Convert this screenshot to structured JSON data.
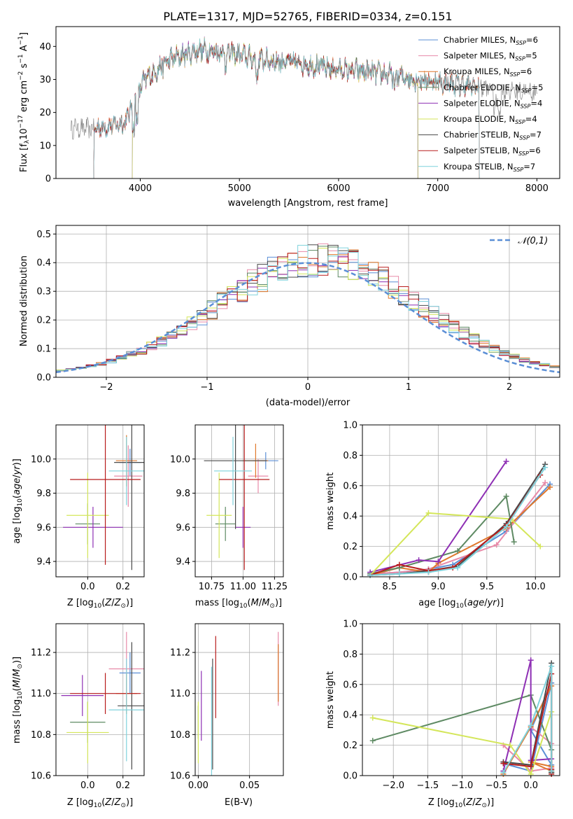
{
  "figure": {
    "title": "PLATE=1317, MJD=52765, FIBERID=0334, z=0.151"
  },
  "colors": [
    "#5b8fd6",
    "#e88aa8",
    "#e0782c",
    "#5e8a63",
    "#8e2fb4",
    "#d4e65a",
    "#4a4a4a",
    "#b81c1c",
    "#7fd2dc"
  ],
  "chart_data": [
    {
      "type": "line",
      "panel": "spectrum",
      "xlabel": "wavelength [Angstrom, rest frame]",
      "ylabel": "Flux [f_λ 10^-17 erg cm^-2 s^-1 A^-1]",
      "xlim": [
        3150,
        8230
      ],
      "ylim": [
        0,
        46
      ],
      "xticks": [
        4000,
        5000,
        6000,
        7000,
        8000
      ],
      "yticks": [
        0,
        10,
        20,
        30,
        40
      ],
      "grid": false,
      "legend_position": "top-right",
      "legend": [
        {
          "name": "Chabrier MILES",
          "nssp": "6"
        },
        {
          "name": "Salpeter MILES",
          "nssp": "5"
        },
        {
          "name": "Kroupa MILES",
          "nssp": "6"
        },
        {
          "name": "Chabrier ELODIE",
          "nssp": "5"
        },
        {
          "name": "Salpeter ELODIE",
          "nssp": "4"
        },
        {
          "name": "Kroupa ELODIE",
          "nssp": "4"
        },
        {
          "name": "Chabrier STELIB",
          "nssp": "7"
        },
        {
          "name": "Salpeter STELIB",
          "nssp": "6"
        },
        {
          "name": "Kroupa STELIB",
          "nssp": "7"
        }
      ],
      "continuum": {
        "x": [
          3300,
          3500,
          3700,
          3850,
          3950,
          4050,
          4300,
          4600,
          4900,
          5200,
          5600,
          6000,
          6400,
          6800,
          7200,
          7600,
          8000
        ],
        "y": [
          15.5,
          15,
          16,
          17,
          25,
          30,
          36,
          39,
          38,
          36,
          35,
          33,
          32,
          30,
          28.5,
          27,
          26
        ]
      },
      "model_ranges": [
        [
          3530,
          6800
        ],
        [
          3530,
          6800
        ],
        [
          3530,
          7420
        ],
        [
          3920,
          6800
        ],
        [
          3920,
          6800
        ],
        [
          3920,
          6800
        ],
        [
          3530,
          7420
        ],
        [
          3530,
          7420
        ],
        [
          3530,
          7420
        ]
      ]
    },
    {
      "type": "area",
      "panel": "residual-histogram",
      "xlabel": "(data-model)/error",
      "ylabel": "Normed distribution",
      "xlim": [
        -2.5,
        2.5
      ],
      "ylim": [
        0,
        0.53
      ],
      "xticks": [
        -2,
        -1,
        0,
        1,
        2
      ],
      "yticks": [
        0.0,
        0.1,
        0.2,
        0.3,
        0.4,
        0.5
      ],
      "grid": true,
      "legend_position": "top-right",
      "legend": [
        {
          "name": "𝒩(0,1)"
        }
      ],
      "bin_width": 0.1
    },
    {
      "type": "scatter",
      "panel": "age-vs-Z",
      "xlabel": "Z [log10(Z/Z☉)]",
      "ylabel": "age  [log10(age/yr)]",
      "xlim": [
        -0.18,
        0.32
      ],
      "ylim": [
        9.31,
        10.2
      ],
      "xticks": [
        0.0,
        0.2
      ],
      "yticks": [
        9.4,
        9.6,
        9.8,
        10.0
      ],
      "grid": true,
      "points": [
        {
          "x": 0.24,
          "y": 9.98,
          "xerr": 0.06,
          "yerr": 0.08
        },
        {
          "x": 0.23,
          "y": 9.9,
          "xerr": 0.08,
          "yerr": 0.18
        },
        {
          "x": 0.22,
          "y": 9.99,
          "xerr": 0.06,
          "yerr": 0.15
        },
        {
          "x": 0.0,
          "y": 9.62,
          "xerr": 0.07,
          "yerr": 0.12
        },
        {
          "x": 0.03,
          "y": 9.6,
          "xerr": 0.17,
          "yerr": 0.12
        },
        {
          "x": 0.0,
          "y": 9.67,
          "xerr": 0.12,
          "yerr": 0.25
        },
        {
          "x": 0.25,
          "y": 9.98,
          "xerr": 0.1,
          "yerr": 0.63
        },
        {
          "x": 0.1,
          "y": 9.88,
          "xerr": 0.2,
          "yerr": 0.5
        },
        {
          "x": 0.22,
          "y": 9.93,
          "xerr": 0.1,
          "yerr": 0.2
        }
      ]
    },
    {
      "type": "scatter",
      "panel": "age-vs-mass",
      "xlabel": "mass [log10(M/M☉)]",
      "ylabel": "",
      "xlim": [
        10.62,
        11.32
      ],
      "ylim": [
        9.31,
        10.2
      ],
      "xticks": [
        10.75,
        11.0,
        11.25
      ],
      "yticks": [
        9.4,
        9.6,
        9.8,
        10.0
      ],
      "grid": true,
      "points": [
        {
          "x": 11.18,
          "y": 9.99,
          "xerr": 0.1,
          "yerr": 0.05
        },
        {
          "x": 11.12,
          "y": 9.9,
          "xerr": 0.08,
          "yerr": 0.1
        },
        {
          "x": 11.1,
          "y": 9.99,
          "xerr": 0.1,
          "yerr": 0.1
        },
        {
          "x": 10.86,
          "y": 9.62,
          "xerr": 0.08,
          "yerr": 0.1
        },
        {
          "x": 11.0,
          "y": 9.6,
          "xerr": 0.06,
          "yerr": 0.12
        },
        {
          "x": 10.81,
          "y": 9.67,
          "xerr": 0.1,
          "yerr": 0.25
        },
        {
          "x": 10.94,
          "y": 9.99,
          "xerr": 0.25,
          "yerr": 0.4
        },
        {
          "x": 11.01,
          "y": 9.88,
          "xerr": 0.2,
          "yerr": 0.53
        },
        {
          "x": 10.92,
          "y": 9.93,
          "xerr": 0.15,
          "yerr": 0.2
        }
      ]
    },
    {
      "type": "line",
      "panel": "weight-vs-age",
      "xlabel": "age  [log10(age/yr)]",
      "ylabel": "mass weight",
      "xlim": [
        8.22,
        10.25
      ],
      "ylim": [
        0,
        1.0
      ],
      "xticks": [
        8.5,
        9.0,
        9.5,
        10.0
      ],
      "yticks": [
        0.0,
        0.2,
        0.4,
        0.6,
        0.8,
        1.0
      ],
      "grid": true,
      "series": [
        {
          "x": [
            8.3,
            8.6,
            8.9,
            9.15,
            9.7,
            10.15
          ],
          "y": [
            0.02,
            0.03,
            0.05,
            0.08,
            0.3,
            0.61
          ]
        },
        {
          "x": [
            8.3,
            8.6,
            8.9,
            9.6,
            10.1
          ],
          "y": [
            0.02,
            0.03,
            0.05,
            0.21,
            0.62
          ]
        },
        {
          "x": [
            8.3,
            8.6,
            8.9,
            9.0,
            9.7,
            10.15
          ],
          "y": [
            0.01,
            0.06,
            0.03,
            0.09,
            0.32,
            0.59
          ]
        },
        {
          "x": [
            8.3,
            8.6,
            9.2,
            9.7,
            9.78
          ],
          "y": [
            0.02,
            0.06,
            0.17,
            0.53,
            0.23
          ]
        },
        {
          "x": [
            8.3,
            8.8,
            9.0,
            9.7
          ],
          "y": [
            0.03,
            0.11,
            0.1,
            0.76
          ]
        },
        {
          "x": [
            8.3,
            8.9,
            9.75,
            10.05
          ],
          "y": [
            0.01,
            0.42,
            0.38,
            0.2
          ]
        },
        {
          "x": [
            8.3,
            8.6,
            8.9,
            9.2,
            9.7,
            10.1
          ],
          "y": [
            0.01,
            0.02,
            0.04,
            0.07,
            0.35,
            0.74
          ]
        },
        {
          "x": [
            8.3,
            8.6,
            8.9,
            9.15,
            9.7,
            10.05
          ],
          "y": [
            0.01,
            0.08,
            0.04,
            0.06,
            0.34,
            0.67
          ]
        },
        {
          "x": [
            8.3,
            8.6,
            8.9,
            9.2,
            9.7,
            10.1
          ],
          "y": [
            0.01,
            0.02,
            0.03,
            0.06,
            0.33,
            0.72
          ]
        }
      ]
    },
    {
      "type": "scatter",
      "panel": "mass-vs-Z",
      "xlabel": "Z [log10(Z/Z☉)]",
      "ylabel": "mass [log10(M/M☉)]",
      "xlim": [
        -0.18,
        0.32
      ],
      "ylim": [
        10.6,
        11.34
      ],
      "xticks": [
        0.0,
        0.2
      ],
      "yticks": [
        10.6,
        10.8,
        11.0,
        11.2
      ],
      "grid": true,
      "points": [
        {
          "x": 0.24,
          "y": 11.1,
          "xerr": 0.06,
          "yerr": 0.1
        },
        {
          "x": 0.22,
          "y": 11.12,
          "xerr": 0.1,
          "yerr": 0.18
        },
        {
          "x": 0.22,
          "y": 11.0,
          "xerr": 0.06,
          "yerr": 0.1
        },
        {
          "x": 0.0,
          "y": 10.86,
          "xerr": 0.1,
          "yerr": 0.1
        },
        {
          "x": -0.03,
          "y": 10.99,
          "xerr": 0.12,
          "yerr": 0.1
        },
        {
          "x": 0.0,
          "y": 10.81,
          "xerr": 0.12,
          "yerr": 0.15
        },
        {
          "x": 0.25,
          "y": 10.94,
          "xerr": 0.08,
          "yerr": 0.31
        },
        {
          "x": 0.1,
          "y": 11.0,
          "xerr": 0.2,
          "yerr": 0.1
        },
        {
          "x": 0.22,
          "y": 10.92,
          "xerr": 0.1,
          "yerr": 0.25
        }
      ]
    },
    {
      "type": "scatter",
      "panel": "mass-vs-ebv",
      "xlabel": "E(B-V)",
      "ylabel": "",
      "xlim": [
        -0.003,
        0.083
      ],
      "ylim": [
        10.6,
        11.34
      ],
      "xticks": [
        0.0,
        0.05
      ],
      "yticks": [
        10.6,
        10.8,
        11.0,
        11.2
      ],
      "grid": true,
      "points": [
        {
          "x": 0.078,
          "y": 11.1,
          "yerr": 0.14
        },
        {
          "x": 0.078,
          "y": 11.12,
          "yerr": 0.18
        },
        {
          "x": 0.078,
          "y": 11.1,
          "yerr": 0.14
        },
        {
          "x": 0.0,
          "y": 10.86,
          "yerr": 0.08
        },
        {
          "x": 0.003,
          "y": 10.94,
          "yerr": 0.17
        },
        {
          "x": 0.0,
          "y": 10.81,
          "yerr": 0.15
        },
        {
          "x": 0.014,
          "y": 10.9,
          "yerr": 0.27
        },
        {
          "x": 0.017,
          "y": 11.08,
          "yerr": 0.2
        },
        {
          "x": 0.013,
          "y": 10.86,
          "yerr": 0.27
        }
      ]
    },
    {
      "type": "line",
      "panel": "weight-vs-Z",
      "xlabel": "Z [log10(Z/Z☉)]",
      "ylabel": "mass weight",
      "xlim": [
        -2.45,
        0.42
      ],
      "ylim": [
        0,
        1.0
      ],
      "xticks": [
        -2.0,
        -1.5,
        -1.0,
        -0.5,
        0.0
      ],
      "yticks": [
        0.0,
        0.2,
        0.4,
        0.6,
        0.8,
        1.0
      ],
      "grid": true,
      "series": [
        {
          "x": [
            -0.4,
            0.0,
            0.3,
            0.0,
            0.3
          ],
          "y": [
            0.08,
            0.03,
            0.61,
            0.3,
            0.07
          ]
        },
        {
          "x": [
            -0.4,
            0.0,
            0.3,
            0.3,
            0.0
          ],
          "y": [
            0.2,
            0.03,
            0.05,
            0.21,
            0.32
          ]
        },
        {
          "x": [
            -0.4,
            0.0,
            0.3,
            0.3,
            0.0,
            0.3
          ],
          "y": [
            0.01,
            0.32,
            0.59,
            0.06,
            0.09,
            0.03
          ]
        },
        {
          "x": [
            -2.3,
            0.0,
            0.3,
            0.3
          ],
          "y": [
            0.23,
            0.53,
            0.17,
            0.02
          ]
        },
        {
          "x": [
            -0.4,
            0.0,
            0.0,
            0.3
          ],
          "y": [
            0.03,
            0.76,
            0.1,
            0.11
          ]
        },
        {
          "x": [
            -2.3,
            -0.3,
            0.0,
            0.3
          ],
          "y": [
            0.38,
            0.2,
            0.01,
            0.42
          ]
        },
        {
          "x": [
            -0.4,
            0.0,
            0.3,
            0.3,
            0.3
          ],
          "y": [
            0.09,
            0.07,
            0.74,
            0.04,
            0.02
          ]
        },
        {
          "x": [
            -0.4,
            0.0,
            0.3,
            0.3,
            0.3
          ],
          "y": [
            0.08,
            0.06,
            0.67,
            0.04,
            0.01
          ]
        },
        {
          "x": [
            -0.4,
            0.0,
            0.3,
            0.3
          ],
          "y": [
            0.02,
            0.33,
            0.72,
            0.03
          ]
        }
      ]
    }
  ]
}
